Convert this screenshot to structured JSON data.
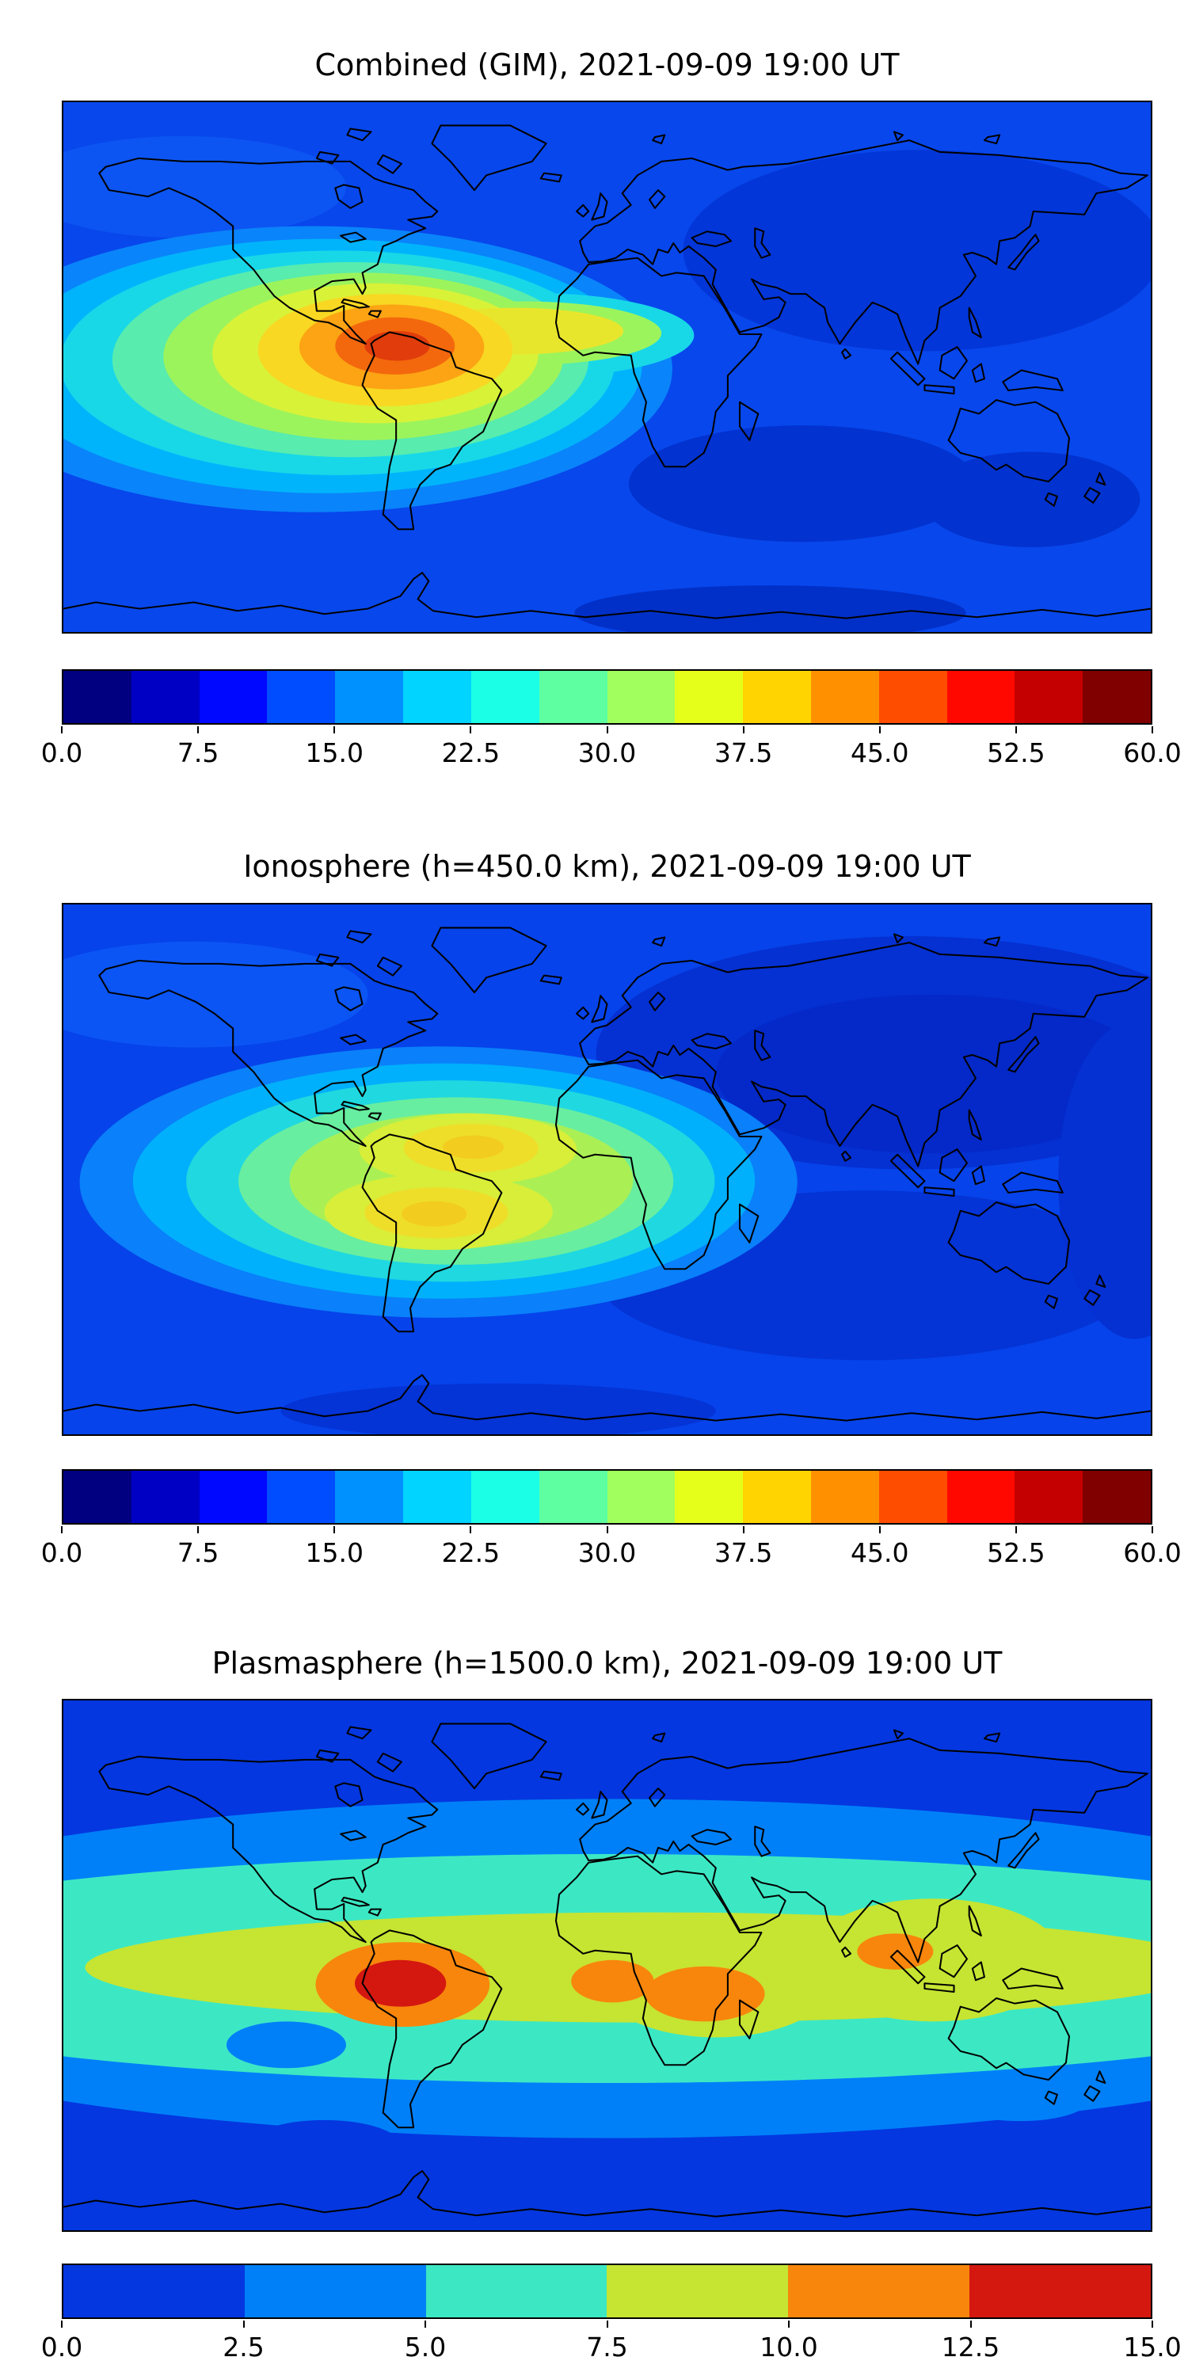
{
  "figure": {
    "background_color": "#ffffff",
    "panels": [
      {
        "id": "combined",
        "title": "Combined (GIM), 2021-09-09 19:00 UT",
        "colorbar": {
          "min": 0.0,
          "max": 60.0,
          "tick_labels": [
            "0.0",
            "7.5",
            "15.0",
            "22.5",
            "30.0",
            "37.5",
            "45.0",
            "52.5",
            "60.0"
          ],
          "segment_colors": [
            "#000080",
            "#0000c4",
            "#0008ff",
            "#004dff",
            "#0091ff",
            "#00d4ff",
            "#1affe6",
            "#5effa1",
            "#a1ff5e",
            "#e6ff1a",
            "#ffd400",
            "#ff9100",
            "#ff4d00",
            "#ff0800",
            "#c40000",
            "#800000"
          ]
        }
      },
      {
        "id": "ionosphere",
        "title": "Ionosphere  (h=450.0 km), 2021-09-09 19:00 UT",
        "colorbar": {
          "min": 0.0,
          "max": 60.0,
          "tick_labels": [
            "0.0",
            "7.5",
            "15.0",
            "22.5",
            "30.0",
            "37.5",
            "45.0",
            "52.5",
            "60.0"
          ],
          "segment_colors": [
            "#000080",
            "#0000c4",
            "#0008ff",
            "#004dff",
            "#0091ff",
            "#00d4ff",
            "#1affe6",
            "#5effa1",
            "#a1ff5e",
            "#e6ff1a",
            "#ffd400",
            "#ff9100",
            "#ff4d00",
            "#ff0800",
            "#c40000",
            "#800000"
          ]
        }
      },
      {
        "id": "plasmasphere",
        "title": "Plasmasphere (h=1500.0 km), 2021-09-09 19:00 UT",
        "colorbar": {
          "min": 0.0,
          "max": 15.0,
          "tick_labels": [
            "0.0",
            "2.5",
            "5.0",
            "7.5",
            "10.0",
            "12.5",
            "15.0"
          ],
          "segment_colors": [
            "#0437e0",
            "#0080f8",
            "#3ce8c4",
            "#c6e432",
            "#f8860c",
            "#d41810"
          ]
        }
      }
    ]
  },
  "chart_data": [
    {
      "type": "heatmap",
      "title": "Combined (GIM), 2021-09-09 19:00 UT",
      "projection": "equirectangular world map, lon -180..180, lat -90..90, coastlines overlaid",
      "colormap": "jet",
      "value_range": [
        0.0,
        60.0
      ],
      "colorbar_ticks": [
        0.0,
        7.5,
        15.0,
        22.5,
        30.0,
        37.5,
        45.0,
        52.5,
        60.0
      ],
      "legend_position": "horizontal colorbar below map",
      "features": [
        {
          "label": "primary maximum (red-orange core)",
          "lon": -70,
          "lat": 7,
          "value": 55
        },
        {
          "label": "broad yellow enhancement over northern South America / Caribbean",
          "lon": -75,
          "lat": 5,
          "value": 38
        },
        {
          "label": "elevated band extending west across Pacific",
          "lon": -130,
          "lat": -3,
          "value": 25
        },
        {
          "label": "green-yellow tongue across tropical Atlantic toward West Africa",
          "lon": -30,
          "lat": 12,
          "value": 30
        },
        {
          "label": "background over Eurasia / Africa",
          "lon": 80,
          "lat": 35,
          "value": 8
        },
        {
          "label": "minimum patches, southern Indian Ocean and south of Australia",
          "lon": 65,
          "lat": -40,
          "value": 4
        }
      ]
    },
    {
      "type": "heatmap",
      "title": "Ionosphere  (h=450.0 km), 2021-09-09 19:00 UT",
      "projection": "equirectangular world map, lon -180..180, lat -90..90, coastlines overlaid",
      "colormap": "jet",
      "value_range": [
        0.0,
        60.0
      ],
      "colorbar_ticks": [
        0.0,
        7.5,
        15.0,
        22.5,
        30.0,
        37.5,
        45.0,
        52.5,
        60.0
      ],
      "legend_position": "horizontal colorbar below map",
      "features": [
        {
          "label": "northern equatorial-anomaly crest (yellow)",
          "lon": -48,
          "lat": 7,
          "value": 33
        },
        {
          "label": "southern equatorial-anomaly crest (yellow)",
          "lon": -65,
          "lat": -13,
          "value": 33
        },
        {
          "label": "moderate values over eastern Pacific",
          "lon": -120,
          "lat": -5,
          "value": 15
        },
        {
          "label": "deep minimum over Asia / nightside",
          "lon": 85,
          "lat": 30,
          "value": 3
        },
        {
          "label": "general background",
          "lon": 0,
          "lat": -50,
          "value": 7
        }
      ]
    },
    {
      "type": "heatmap",
      "title": "Plasmasphere (h=1500.0 km), 2021-09-09 19:00 UT",
      "projection": "equirectangular world map, lon -180..180, lat -90..90, coastlines overlaid",
      "colormap": "jet (6 discrete levels)",
      "value_range": [
        0.0,
        15.0
      ],
      "colorbar_ticks": [
        0.0,
        2.5,
        5.0,
        7.5,
        10.0,
        12.5,
        15.0
      ],
      "legend_position": "horizontal colorbar below map",
      "features": [
        {
          "label": "maximum (dark red core) over central South America",
          "lon": -68,
          "lat": -6,
          "value": 14
        },
        {
          "label": "orange enhancement around South American maximum",
          "lon": -68,
          "lat": -6,
          "value": 11.5
        },
        {
          "label": "orange enhancement near Gulf of Guinea",
          "lon": 2,
          "lat": -5,
          "value": 11
        },
        {
          "label": "orange enhancement over south-central Africa",
          "lon": 32,
          "lat": -10,
          "value": 11
        },
        {
          "label": "orange enhancement over Bay of Bengal / SE Asia",
          "lon": 95,
          "lat": 5,
          "value": 11
        },
        {
          "label": "yellow-green equatorial belt",
          "lat_range": [
            -22,
            16
          ],
          "value": 8.5
        },
        {
          "label": "turquoise mid-latitude bands",
          "lat_range": [
            -45,
            40
          ],
          "value": 6
        },
        {
          "label": "light-blue sub-polar bands",
          "value": 3.5
        },
        {
          "label": "dark-blue polar background",
          "value": 1.2
        }
      ]
    }
  ]
}
